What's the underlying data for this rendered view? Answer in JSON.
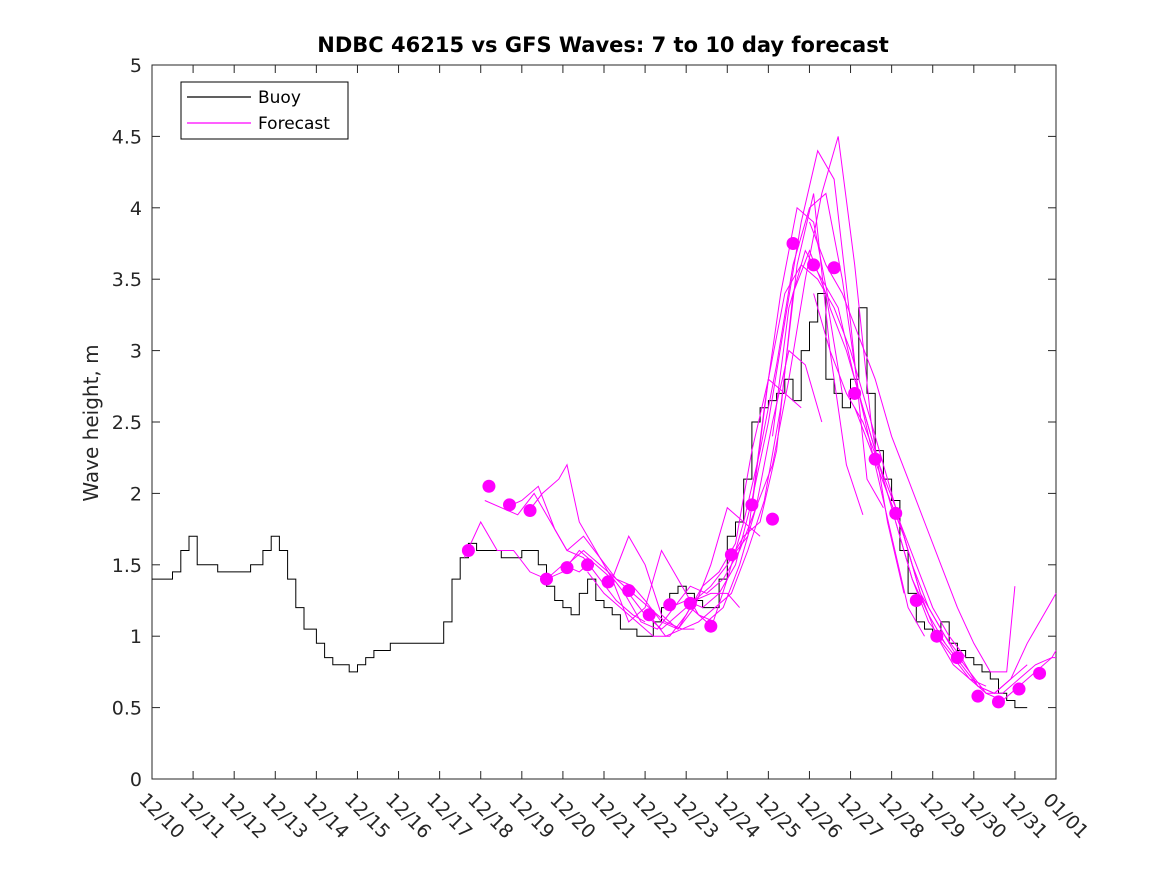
{
  "chart_data": {
    "type": "line",
    "title": "NDBC 46215 vs GFS Waves: 7 to 10 day forecast",
    "xlabel": "",
    "ylabel": "Wave height, m",
    "xlim": [
      0,
      22
    ],
    "ylim": [
      0,
      5
    ],
    "x_ticks": [
      0,
      1,
      2,
      3,
      4,
      5,
      6,
      7,
      8,
      9,
      10,
      11,
      12,
      13,
      14,
      15,
      16,
      17,
      18,
      19,
      20,
      21,
      22
    ],
    "x_tick_labels": [
      "12/10",
      "12/11",
      "12/12",
      "12/13",
      "12/14",
      "12/15",
      "12/16",
      "12/17",
      "12/18",
      "12/19",
      "12/20",
      "12/21",
      "12/22",
      "12/23",
      "12/24",
      "12/25",
      "12/26",
      "12/27",
      "12/28",
      "12/29",
      "12/30",
      "12/31",
      "01/01"
    ],
    "y_ticks": [
      0,
      0.5,
      1,
      1.5,
      2,
      2.5,
      3,
      3.5,
      4,
      4.5,
      5
    ],
    "y_tick_labels": [
      "0",
      "0.5",
      "1",
      "1.5",
      "2",
      "2.5",
      "3",
      "3.5",
      "4",
      "4.5",
      "5"
    ],
    "legend": {
      "position": "top-left",
      "entries": [
        {
          "label": "Buoy",
          "color": "#000000"
        },
        {
          "label": "Forecast",
          "color": "#ff00ff"
        }
      ]
    },
    "colors": {
      "buoy": "#000000",
      "forecast": "#ff00ff"
    },
    "series": [
      {
        "name": "Buoy",
        "role": "buoy",
        "x": [
          0,
          0.3,
          0.5,
          0.7,
          0.9,
          1.1,
          1.3,
          1.6,
          1.9,
          2.1,
          2.4,
          2.7,
          2.9,
          3.1,
          3.3,
          3.5,
          3.7,
          4.0,
          4.2,
          4.4,
          4.6,
          4.8,
          5.0,
          5.2,
          5.4,
          5.6,
          5.8,
          6.0,
          6.3,
          6.6,
          6.9,
          7.1,
          7.3,
          7.5,
          7.7,
          7.9,
          8.2,
          8.5,
          8.8,
          9.0,
          9.2,
          9.4,
          9.6,
          9.8,
          10.0,
          10.2,
          10.4,
          10.6,
          10.8,
          11.0,
          11.2,
          11.4,
          11.6,
          11.8,
          12.0,
          12.2,
          12.4,
          12.6,
          12.8,
          13.0,
          13.2,
          13.4,
          13.6,
          13.8,
          14.0,
          14.2,
          14.4,
          14.6,
          14.8,
          15.0,
          15.2,
          15.4,
          15.6,
          15.8,
          16.0,
          16.2,
          16.4,
          16.6,
          16.8,
          17.0,
          17.2,
          17.4,
          17.6,
          17.8,
          18.0,
          18.2,
          18.4,
          18.6,
          18.8,
          19.0,
          19.2,
          19.4,
          19.6,
          19.8,
          20.0,
          20.2,
          20.4,
          20.6,
          20.8,
          21.0,
          21.1,
          21.3
        ],
        "values": [
          1.4,
          1.4,
          1.45,
          1.6,
          1.7,
          1.5,
          1.5,
          1.45,
          1.45,
          1.45,
          1.5,
          1.6,
          1.7,
          1.6,
          1.4,
          1.2,
          1.05,
          0.95,
          0.85,
          0.8,
          0.8,
          0.75,
          0.8,
          0.85,
          0.9,
          0.9,
          0.95,
          0.95,
          0.95,
          0.95,
          0.95,
          1.1,
          1.4,
          1.55,
          1.65,
          1.6,
          1.6,
          1.55,
          1.55,
          1.6,
          1.6,
          1.5,
          1.35,
          1.25,
          1.2,
          1.15,
          1.3,
          1.4,
          1.25,
          1.2,
          1.15,
          1.05,
          1.05,
          1.0,
          1.0,
          1.1,
          1.2,
          1.3,
          1.35,
          1.3,
          1.25,
          1.2,
          1.2,
          1.4,
          1.7,
          1.8,
          2.1,
          2.5,
          2.6,
          2.65,
          2.7,
          2.8,
          2.65,
          3.0,
          3.2,
          3.4,
          2.8,
          2.7,
          2.6,
          2.8,
          3.3,
          2.7,
          2.3,
          2.1,
          1.95,
          1.6,
          1.3,
          1.1,
          1.05,
          1.0,
          1.1,
          0.95,
          0.9,
          0.85,
          0.8,
          0.75,
          0.7,
          0.6,
          0.55,
          0.5,
          0.5,
          0.5
        ]
      },
      {
        "name": "Forecast 1",
        "role": "forecast",
        "x": [
          7.6,
          8.0,
          8.4,
          8.8,
          9.2,
          9.6,
          10.0,
          10.4,
          10.6
        ],
        "values": [
          1.55,
          1.8,
          1.6,
          1.6,
          1.45,
          1.4,
          1.5,
          1.45,
          1.5
        ]
      },
      {
        "name": "Forecast 2",
        "role": "forecast",
        "x": [
          8.1,
          8.5,
          8.9,
          9.3,
          9.7,
          10.1,
          10.5,
          10.9,
          11.3,
          11.7,
          12.0
        ],
        "values": [
          1.95,
          1.9,
          1.85,
          2.0,
          1.8,
          1.6,
          1.55,
          1.4,
          1.25,
          1.15,
          1.1
        ]
      },
      {
        "name": "Forecast 3",
        "role": "forecast",
        "x": [
          8.6,
          9.0,
          9.4,
          9.8,
          10.1,
          10.5,
          10.9,
          11.3,
          11.7,
          12.1,
          12.5,
          12.9,
          13.2
        ],
        "values": [
          1.9,
          1.95,
          2.05,
          1.75,
          1.6,
          1.7,
          1.55,
          1.4,
          1.3,
          1.2,
          1.1,
          1.05,
          1.05
        ]
      },
      {
        "name": "Forecast 4",
        "role": "forecast",
        "x": [
          9.1,
          9.5,
          9.9,
          10.1,
          10.4,
          10.8,
          11.2,
          11.6,
          12.0,
          12.4,
          12.8,
          13.3,
          13.7
        ],
        "values": [
          1.85,
          2.0,
          2.1,
          2.2,
          1.8,
          1.6,
          1.4,
          1.1,
          1.2,
          1.6,
          1.4,
          1.15,
          1.1
        ]
      },
      {
        "name": "Forecast 5",
        "role": "forecast",
        "x": [
          9.6,
          10.0,
          10.4,
          10.8,
          11.2,
          11.6,
          12.0,
          12.4,
          12.8,
          13.2,
          13.6,
          14.0,
          14.3
        ],
        "values": [
          1.4,
          1.45,
          1.6,
          1.5,
          1.4,
          1.7,
          1.5,
          1.15,
          1.05,
          1.25,
          1.3,
          1.3,
          1.2
        ]
      },
      {
        "name": "Forecast 6",
        "role": "forecast",
        "x": [
          10.1,
          10.5,
          10.9,
          11.3,
          11.7,
          12.0,
          12.4,
          12.8,
          13.2,
          13.6,
          14.0,
          14.4,
          14.8
        ],
        "values": [
          1.5,
          1.6,
          1.5,
          1.4,
          1.35,
          1.25,
          1.1,
          1.05,
          1.2,
          1.5,
          1.9,
          1.8,
          1.7
        ]
      },
      {
        "name": "Forecast 7",
        "role": "forecast",
        "x": [
          10.6,
          11.0,
          11.4,
          11.8,
          12.2,
          12.6,
          13.0,
          13.4,
          13.8,
          14.2,
          14.6,
          15.0,
          15.4,
          15.8
        ],
        "values": [
          1.45,
          1.3,
          1.2,
          1.1,
          1.0,
          1.0,
          1.15,
          1.35,
          1.45,
          1.65,
          2.3,
          2.8,
          2.7,
          2.6
        ]
      },
      {
        "name": "Forecast 8",
        "role": "forecast",
        "x": [
          11.1,
          11.5,
          11.9,
          12.3,
          12.7,
          13.1,
          13.5,
          13.9,
          14.3,
          14.7,
          15.1,
          15.5,
          15.9,
          16.3
        ],
        "values": [
          1.45,
          1.3,
          1.1,
          1.05,
          1.2,
          1.35,
          1.3,
          1.4,
          1.6,
          1.9,
          2.5,
          3.0,
          2.9,
          2.5
        ]
      },
      {
        "name": "Forecast 9",
        "role": "forecast",
        "x": [
          11.6,
          12.0,
          12.4,
          12.8,
          13.2,
          13.6,
          14.0,
          14.4,
          14.8,
          15.2,
          15.6,
          16.0,
          16.4,
          16.8
        ],
        "values": [
          1.3,
          1.15,
          1.05,
          1.15,
          1.25,
          1.35,
          1.5,
          1.7,
          1.8,
          2.3,
          3.4,
          3.7,
          3.4,
          2.7
        ]
      },
      {
        "name": "Forecast 10",
        "role": "forecast",
        "x": [
          12.1,
          12.5,
          12.9,
          13.3,
          13.7,
          14.1,
          14.5,
          14.9,
          15.3,
          15.7,
          16.1,
          16.5,
          16.9,
          17.3
        ],
        "values": [
          1.15,
          1.0,
          1.05,
          1.1,
          1.2,
          1.3,
          1.6,
          1.95,
          2.6,
          3.6,
          4.1,
          3.0,
          2.2,
          1.85
        ]
      },
      {
        "name": "Forecast 11",
        "role": "forecast",
        "x": [
          12.6,
          13.0,
          13.4,
          13.8,
          14.2,
          14.6,
          15.0,
          15.4,
          15.8,
          16.2,
          16.6,
          17.0,
          17.4,
          17.8
        ],
        "values": [
          1.2,
          1.25,
          1.2,
          1.3,
          1.5,
          1.95,
          2.5,
          3.2,
          3.9,
          4.4,
          4.2,
          3.2,
          2.1,
          1.9
        ]
      },
      {
        "name": "Forecast 12",
        "role": "forecast",
        "x": [
          13.1,
          13.5,
          13.9,
          14.3,
          14.7,
          15.1,
          15.5,
          15.9,
          16.3,
          16.7,
          17.1,
          17.5,
          17.9,
          18.3
        ],
        "values": [
          1.2,
          1.1,
          1.2,
          1.5,
          1.9,
          2.2,
          2.8,
          3.5,
          4.1,
          4.5,
          3.6,
          2.5,
          1.8,
          1.3
        ]
      },
      {
        "name": "Forecast 13",
        "role": "forecast",
        "x": [
          13.6,
          14.0,
          14.4,
          14.8,
          15.2,
          15.6,
          16.0,
          16.4,
          16.8,
          17.2,
          17.6,
          18.0,
          18.4,
          18.8
        ],
        "values": [
          1.05,
          1.4,
          1.8,
          2.3,
          2.9,
          3.6,
          4.0,
          4.1,
          3.5,
          2.7,
          2.2,
          1.7,
          1.2,
          1.0
        ]
      },
      {
        "name": "Forecast 14",
        "role": "forecast",
        "x": [
          14.1,
          14.5,
          14.9,
          15.3,
          15.7,
          16.1,
          16.5,
          16.9,
          17.3,
          17.7,
          18.1,
          18.5,
          18.9,
          19.3
        ],
        "values": [
          1.55,
          1.7,
          2.6,
          3.4,
          4.0,
          3.9,
          3.3,
          3.0,
          2.6,
          2.2,
          1.8,
          1.4,
          1.1,
          0.95
        ]
      },
      {
        "name": "Forecast 15",
        "role": "forecast",
        "x": [
          14.6,
          15.0,
          15.4,
          15.8,
          16.2,
          16.6,
          17.0,
          17.4,
          17.8,
          18.2,
          18.6,
          19.0,
          19.4,
          19.8
        ],
        "values": [
          1.9,
          2.8,
          3.4,
          3.6,
          3.5,
          3.3,
          3.0,
          2.6,
          2.2,
          1.8,
          1.5,
          1.2,
          1.0,
          0.85
        ]
      },
      {
        "name": "Forecast 16",
        "role": "forecast",
        "x": [
          15.1,
          15.5,
          15.9,
          16.3,
          16.7,
          17.1,
          17.5,
          17.9,
          18.3,
          18.7,
          19.1,
          19.5,
          19.9,
          20.3
        ],
        "values": [
          2.4,
          3.3,
          3.7,
          3.5,
          3.3,
          2.8,
          2.4,
          2.0,
          1.7,
          1.3,
          1.0,
          0.8,
          0.7,
          0.65
        ]
      },
      {
        "name": "Forecast 17",
        "role": "forecast",
        "x": [
          16.1,
          16.5,
          16.9,
          17.3,
          17.7,
          18.1,
          18.5,
          18.9,
          19.3,
          19.7,
          20.1,
          20.5,
          20.9,
          21.3
        ],
        "values": [
          3.4,
          3.0,
          2.7,
          2.5,
          2.2,
          1.9,
          1.5,
          1.2,
          1.0,
          0.85,
          0.65,
          0.6,
          0.7,
          0.8
        ]
      },
      {
        "name": "Forecast 18",
        "role": "forecast",
        "x": [
          17.1,
          17.5,
          17.9,
          18.3,
          18.7,
          19.1,
          19.5,
          19.9,
          20.3,
          20.7,
          21.1,
          21.5,
          21.9,
          22.0
        ],
        "values": [
          2.6,
          2.3,
          2.0,
          1.7,
          1.3,
          1.1,
          0.9,
          0.75,
          0.6,
          0.55,
          0.65,
          0.75,
          0.85,
          0.9
        ]
      },
      {
        "name": "Forecast 19",
        "role": "forecast",
        "x": [
          18.1,
          18.5,
          18.9,
          19.3,
          19.7,
          20.1,
          20.5,
          20.9,
          21.3,
          21.7,
          22.0
        ],
        "values": [
          1.8,
          1.4,
          1.15,
          0.95,
          0.8,
          0.65,
          0.6,
          0.7,
          0.95,
          1.15,
          1.3
        ]
      },
      {
        "name": "Forecast 20",
        "role": "forecast",
        "x": [
          19.1,
          19.5,
          19.9,
          20.3,
          20.7,
          21.1,
          21.5,
          21.9,
          22.0
        ],
        "values": [
          1.0,
          0.85,
          0.7,
          0.6,
          0.6,
          0.7,
          0.8,
          0.85,
          0.85
        ]
      },
      {
        "name": "Forecast 21",
        "role": "forecast",
        "x": [
          16.0,
          16.4,
          16.8,
          17.2,
          17.6,
          18.0,
          18.4,
          18.8,
          19.2,
          19.6,
          20.0,
          20.4,
          20.8,
          21.0
        ],
        "values": [
          3.9,
          3.6,
          3.4,
          3.1,
          2.8,
          2.4,
          2.1,
          1.8,
          1.5,
          1.2,
          0.95,
          0.75,
          0.75,
          1.35
        ]
      }
    ],
    "forecast_points": {
      "x": [
        7.7,
        8.2,
        8.7,
        9.2,
        9.6,
        10.1,
        10.6,
        11.1,
        11.6,
        12.1,
        12.6,
        13.1,
        13.6,
        14.1,
        14.6,
        15.1,
        15.6,
        16.1,
        16.6,
        17.1,
        17.6,
        18.1,
        18.6,
        19.1,
        19.6,
        20.1,
        20.6,
        21.1,
        21.6
      ],
      "values": [
        1.6,
        2.05,
        1.92,
        1.88,
        1.4,
        1.48,
        1.5,
        1.38,
        1.32,
        1.15,
        1.22,
        1.23,
        1.07,
        1.57,
        1.92,
        1.82,
        3.75,
        3.6,
        3.58,
        2.7,
        2.24,
        1.86,
        1.25,
        1.0,
        0.85,
        0.58,
        0.54,
        0.63,
        0.74
      ]
    }
  }
}
